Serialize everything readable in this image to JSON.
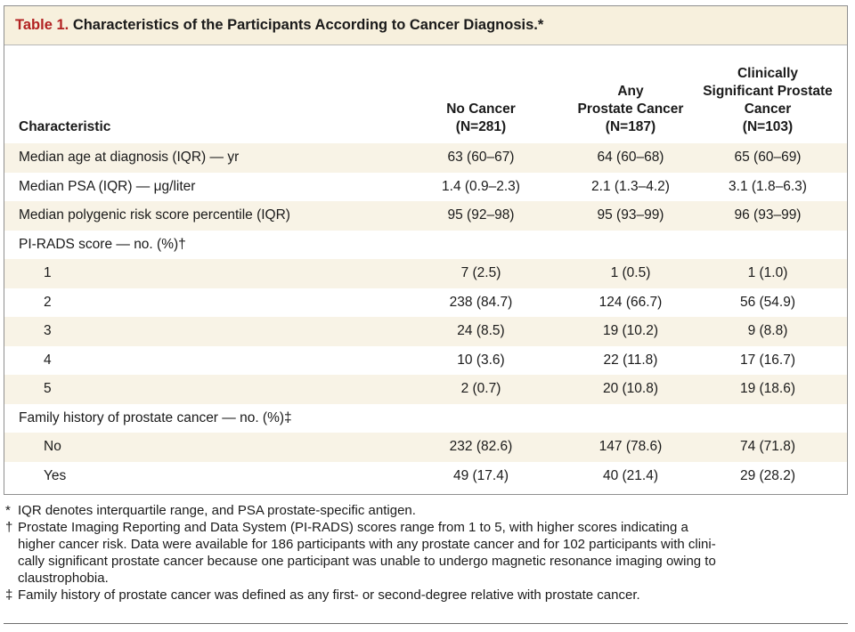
{
  "table": {
    "title_number": "Table 1.",
    "title_text": "Characteristics of the Participants According to Cancer Diagnosis.*",
    "headers": {
      "characteristic": "Characteristic",
      "col1": [
        "No Cancer",
        "(N=281)"
      ],
      "col2": [
        "Any",
        "Prostate Cancer",
        "(N=187)"
      ],
      "col3": [
        "Clinically",
        "Significant Prostate",
        "Cancer",
        "(N=103)"
      ]
    },
    "rows": [
      {
        "label": "Median age at diagnosis (IQR) — yr",
        "indent": false,
        "shade": true,
        "v1": "63 (60–67)",
        "v2": "64 (60–68)",
        "v3": "65 (60–69)"
      },
      {
        "label": "Median PSA (IQR) — μg/liter",
        "indent": false,
        "shade": false,
        "v1": "1.4 (0.9–2.3)",
        "v2": "2.1 (1.3–4.2)",
        "v3": "3.1 (1.8–6.3)"
      },
      {
        "label": "Median polygenic risk score percentile (IQR)",
        "indent": false,
        "shade": true,
        "v1": "95 (92–98)",
        "v2": "95 (93–99)",
        "v3": "96 (93–99)"
      },
      {
        "label": "PI-RADS score — no. (%)†",
        "indent": false,
        "shade": false,
        "v1": "",
        "v2": "",
        "v3": ""
      },
      {
        "label": "1",
        "indent": true,
        "shade": true,
        "v1": "7 (2.5)",
        "v2": "1 (0.5)",
        "v3": "1 (1.0)"
      },
      {
        "label": "2",
        "indent": true,
        "shade": false,
        "v1": "238 (84.7)",
        "v2": "124 (66.7)",
        "v3": "56 (54.9)"
      },
      {
        "label": "3",
        "indent": true,
        "shade": true,
        "v1": "24 (8.5)",
        "v2": "19 (10.2)",
        "v3": "9 (8.8)"
      },
      {
        "label": "4",
        "indent": true,
        "shade": false,
        "v1": "10 (3.6)",
        "v2": "22 (11.8)",
        "v3": "17 (16.7)"
      },
      {
        "label": "5",
        "indent": true,
        "shade": true,
        "v1": "2 (0.7)",
        "v2": "20 (10.8)",
        "v3": "19 (18.6)"
      },
      {
        "label": "Family history of prostate cancer — no. (%)‡",
        "indent": false,
        "shade": false,
        "v1": "",
        "v2": "",
        "v3": ""
      },
      {
        "label": "No",
        "indent": true,
        "shade": true,
        "v1": "232 (82.6)",
        "v2": "147 (78.6)",
        "v3": "74 (71.8)"
      },
      {
        "label": "Yes",
        "indent": true,
        "shade": false,
        "v1": "49 (17.4)",
        "v2": "40 (21.4)",
        "v3": "29 (28.2)"
      }
    ]
  },
  "footnotes": [
    {
      "mark": "*",
      "lines": [
        "IQR denotes interquartile range, and PSA prostate-specific antigen."
      ]
    },
    {
      "mark": "†",
      "lines": [
        "Prostate Imaging Reporting and Data System (PI-RADS) scores range from 1 to 5, with higher scores indicating a",
        "higher cancer risk. Data were available for 186 participants with any prostate cancer and for 102 participants with clini-",
        "cally significant prostate cancer because one participant was unable to undergo magnetic resonance imaging owing to",
        "claustrophobia."
      ]
    },
    {
      "mark": "‡",
      "lines": [
        "Family history of prostate cancer was defined as any first- or second-degree relative with prostate cancer."
      ]
    }
  ]
}
